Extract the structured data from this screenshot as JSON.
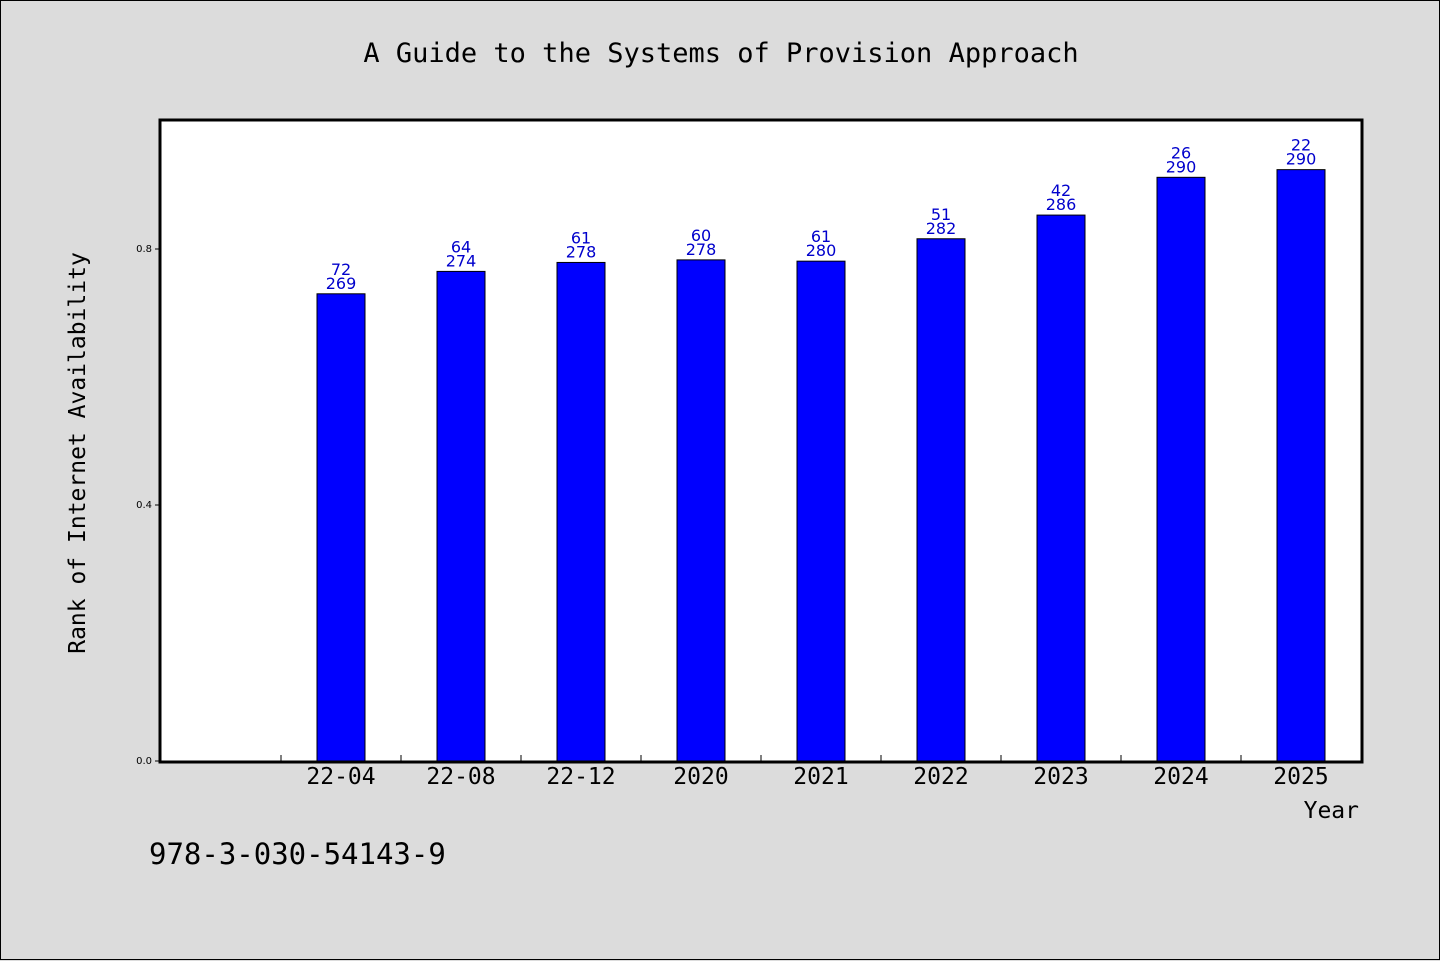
{
  "chart_data": {
    "type": "bar",
    "title": "A Guide to the Systems of Provision Approach",
    "xlabel": "Year",
    "ylabel": "Rank of Internet Availability",
    "categories": [
      "22-04",
      "22-08",
      "22-12",
      "2020",
      "2021",
      "2022",
      "2023",
      "2024",
      "2025"
    ],
    "values": [
      0.73,
      0.765,
      0.779,
      0.783,
      0.781,
      0.816,
      0.853,
      0.912,
      0.924
    ],
    "label_top": [
      "72",
      "64",
      "61",
      "60",
      "61",
      "51",
      "42",
      "26",
      "22"
    ],
    "label_bottom": [
      "269",
      "274",
      "278",
      "278",
      "280",
      "282",
      "286",
      "290",
      "290"
    ],
    "yticks": [
      "0.0",
      "0.4",
      "0.8"
    ],
    "ylim": [
      0,
      1.0
    ],
    "grid": false,
    "bar_color": "#0000ff",
    "label_color": "#0000cc",
    "footnote": "978-3-030-54143-9"
  }
}
